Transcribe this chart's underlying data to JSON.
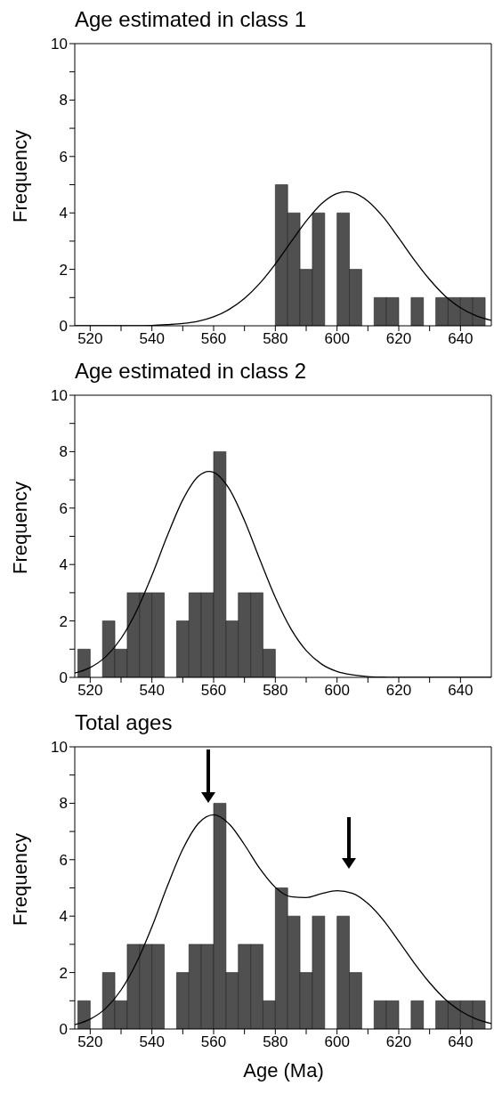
{
  "chart_data": [
    {
      "type": "histogram",
      "title": "Age estimated in class 1",
      "ylabel": "Frequency",
      "color": "#505050",
      "xlim": [
        515,
        650
      ],
      "xticks": [
        520,
        {
          "value": 530,
          "label": null
        },
        540,
        {
          "value": 550,
          "label": null
        },
        560,
        {
          "value": 570,
          "label": null
        },
        580,
        {
          "value": 590,
          "label": null
        },
        600,
        {
          "value": 610,
          "label": null
        },
        620,
        {
          "value": 630,
          "label": null
        },
        640
      ],
      "ylim": [
        0,
        10
      ],
      "yticks": [
        0,
        {
          "value": 1,
          "label": null
        },
        2,
        {
          "value": 3,
          "label": null
        },
        4,
        {
          "value": 5,
          "label": null
        },
        6,
        {
          "value": 7,
          "label": null
        },
        8,
        {
          "value": 9,
          "label": null
        },
        10
      ],
      "bins": [
        516,
        520,
        524,
        528,
        532,
        536,
        540,
        544,
        548,
        552,
        556,
        560,
        564,
        568,
        572,
        576,
        580,
        584,
        588,
        592,
        596,
        600,
        604,
        608,
        612,
        616,
        620,
        624,
        628,
        632,
        636,
        640,
        644,
        648
      ],
      "values": [
        0,
        0,
        0,
        0,
        0,
        0,
        0,
        0,
        0,
        0,
        0,
        0,
        0,
        0,
        0,
        0,
        5,
        4,
        2,
        4,
        0,
        4,
        2,
        0,
        1,
        1,
        0,
        1,
        0,
        1,
        1,
        1,
        1
      ],
      "series": [
        {
          "type": "line",
          "color": "#000000",
          "x": [
            515,
            520,
            525,
            530,
            535,
            540,
            545,
            550,
            555,
            560,
            565,
            570,
            575,
            580,
            585,
            590,
            595,
            600,
            603,
            605,
            610,
            615,
            620,
            625,
            630,
            635,
            640,
            645,
            650
          ],
          "values": [
            0,
            0,
            0,
            0,
            0,
            0.01,
            0.04,
            0.08,
            0.16,
            0.32,
            0.58,
            0.97,
            1.51,
            2.19,
            2.96,
            3.71,
            4.33,
            4.69,
            4.75,
            4.72,
            4.42,
            3.85,
            3.11,
            2.34,
            1.64,
            1.06,
            0.64,
            0.36,
            0.19
          ]
        }
      ]
    },
    {
      "type": "histogram",
      "title": "Age estimated in class 2",
      "ylabel": "Frequency",
      "color": "#505050",
      "xlim": [
        515,
        650
      ],
      "xticks": [
        520,
        {
          "value": 530,
          "label": null
        },
        540,
        {
          "value": 550,
          "label": null
        },
        560,
        {
          "value": 570,
          "label": null
        },
        580,
        {
          "value": 590,
          "label": null
        },
        600,
        {
          "value": 610,
          "label": null
        },
        620,
        {
          "value": 630,
          "label": null
        },
        640
      ],
      "ylim": [
        0,
        10
      ],
      "yticks": [
        0,
        {
          "value": 1,
          "label": null
        },
        2,
        {
          "value": 3,
          "label": null
        },
        4,
        {
          "value": 5,
          "label": null
        },
        6,
        {
          "value": 7,
          "label": null
        },
        8,
        {
          "value": 9,
          "label": null
        },
        10
      ],
      "bins": [
        516,
        520,
        524,
        528,
        532,
        536,
        540,
        544,
        548,
        552,
        556,
        560,
        564,
        568,
        572,
        576,
        580,
        584,
        588,
        592,
        596,
        600,
        604,
        608,
        612,
        616,
        620,
        624,
        628,
        632,
        636,
        640,
        644,
        648
      ],
      "values": [
        1,
        0,
        2,
        1,
        3,
        3,
        3,
        0,
        2,
        3,
        3,
        8,
        2,
        3,
        3,
        1,
        0,
        0,
        0,
        0,
        0,
        0,
        0,
        0,
        0,
        0,
        0,
        0,
        0,
        0,
        0,
        0,
        0
      ],
      "series": [
        {
          "type": "line",
          "color": "#000000",
          "x": [
            515,
            520,
            525,
            530,
            535,
            540,
            545,
            550,
            555,
            558.5,
            560,
            565,
            570,
            575,
            580,
            585,
            590,
            595,
            600,
            605,
            610,
            615,
            620,
            630,
            640,
            650
          ],
          "values": [
            0.15,
            0.35,
            0.73,
            1.38,
            2.35,
            3.61,
            5.02,
            6.29,
            7.12,
            7.3,
            7.27,
            6.69,
            5.56,
            4.17,
            2.83,
            1.73,
            0.95,
            0.47,
            0.21,
            0.09,
            0.03,
            0.01,
            0,
            0,
            0,
            0
          ]
        }
      ]
    },
    {
      "type": "histogram",
      "title": "Total ages",
      "ylabel": "Frequency",
      "xlabel": "Age (Ma)",
      "color": "#505050",
      "xlim": [
        515,
        650
      ],
      "xticks": [
        520,
        {
          "value": 530,
          "label": null
        },
        540,
        {
          "value": 550,
          "label": null
        },
        560,
        {
          "value": 570,
          "label": null
        },
        580,
        {
          "value": 590,
          "label": null
        },
        600,
        {
          "value": 610,
          "label": null
        },
        620,
        {
          "value": 630,
          "label": null
        },
        640
      ],
      "ylim": [
        0,
        10
      ],
      "yticks": [
        0,
        {
          "value": 1,
          "label": null
        },
        2,
        {
          "value": 3,
          "label": null
        },
        4,
        {
          "value": 5,
          "label": null
        },
        6,
        {
          "value": 7,
          "label": null
        },
        8,
        {
          "value": 9,
          "label": null
        },
        10
      ],
      "bins": [
        516,
        520,
        524,
        528,
        532,
        536,
        540,
        544,
        548,
        552,
        556,
        560,
        564,
        568,
        572,
        576,
        580,
        584,
        588,
        592,
        596,
        600,
        604,
        608,
        612,
        616,
        620,
        624,
        628,
        632,
        636,
        640,
        644,
        648
      ],
      "values": [
        1,
        0,
        2,
        1,
        3,
        3,
        3,
        0,
        2,
        3,
        3,
        8,
        2,
        3,
        3,
        1,
        5,
        4,
        2,
        4,
        0,
        4,
        2,
        0,
        1,
        1,
        0,
        1,
        0,
        1,
        1,
        1,
        1
      ],
      "series": [
        {
          "type": "line",
          "color": "#000000",
          "x": [
            515,
            520,
            525,
            530,
            535,
            540,
            545,
            550,
            555,
            560,
            565,
            570,
            575,
            580,
            585,
            590,
            595,
            600,
            605,
            610,
            615,
            620,
            625,
            630,
            635,
            640,
            645,
            650
          ],
          "values": [
            0.15,
            0.35,
            0.73,
            1.38,
            2.35,
            3.62,
            5.06,
            6.37,
            7.28,
            7.59,
            7.27,
            6.53,
            5.68,
            5.02,
            4.69,
            4.66,
            4.8,
            4.9,
            4.81,
            4.45,
            3.86,
            3.11,
            2.34,
            1.64,
            1.06,
            0.64,
            0.36,
            0.19
          ]
        }
      ]
    }
  ]
}
